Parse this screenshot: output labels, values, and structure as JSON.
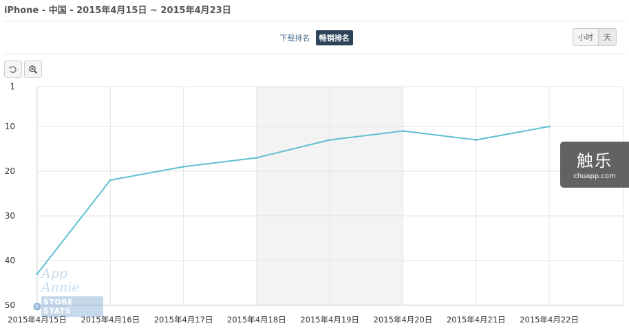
{
  "header": {
    "title": "iPhone - 中国 - 2015年4月15日 ~ 2015年4月23日"
  },
  "rank_tabs": [
    {
      "label": "下载排名",
      "active": false
    },
    {
      "label": "畅销排名",
      "active": true
    }
  ],
  "granularity": {
    "hour_label": "小时",
    "day_label": "天"
  },
  "toolbar": {
    "reset_icon": "undo-icon",
    "zoom_icon": "zoom-in-icon"
  },
  "watermark": {
    "brand": "触乐",
    "url": "chuapp.com"
  },
  "app_annie_logo": {
    "line1": "App Annie",
    "line2": "STORE STATS"
  },
  "chart_data": {
    "type": "line",
    "title": "",
    "xlabel": "",
    "ylabel": "",
    "y_reversed": true,
    "ylim": [
      1,
      50
    ],
    "yticks": [
      1,
      10,
      20,
      30,
      40,
      50
    ],
    "categories": [
      "2015年4月15日",
      "2015年4月16日",
      "2015年4月17日",
      "2015年4月18日",
      "2015年4月19日",
      "2015年4月20日",
      "2015年4月21日",
      "2015年4月22日"
    ],
    "highlight_band": [
      "2015年4月18日",
      "2015年4月19日"
    ],
    "grid": true,
    "series": [
      {
        "values": [
          43,
          22,
          19,
          17,
          13,
          11,
          13,
          10
        ],
        "color": "#5fbfcf"
      }
    ]
  }
}
